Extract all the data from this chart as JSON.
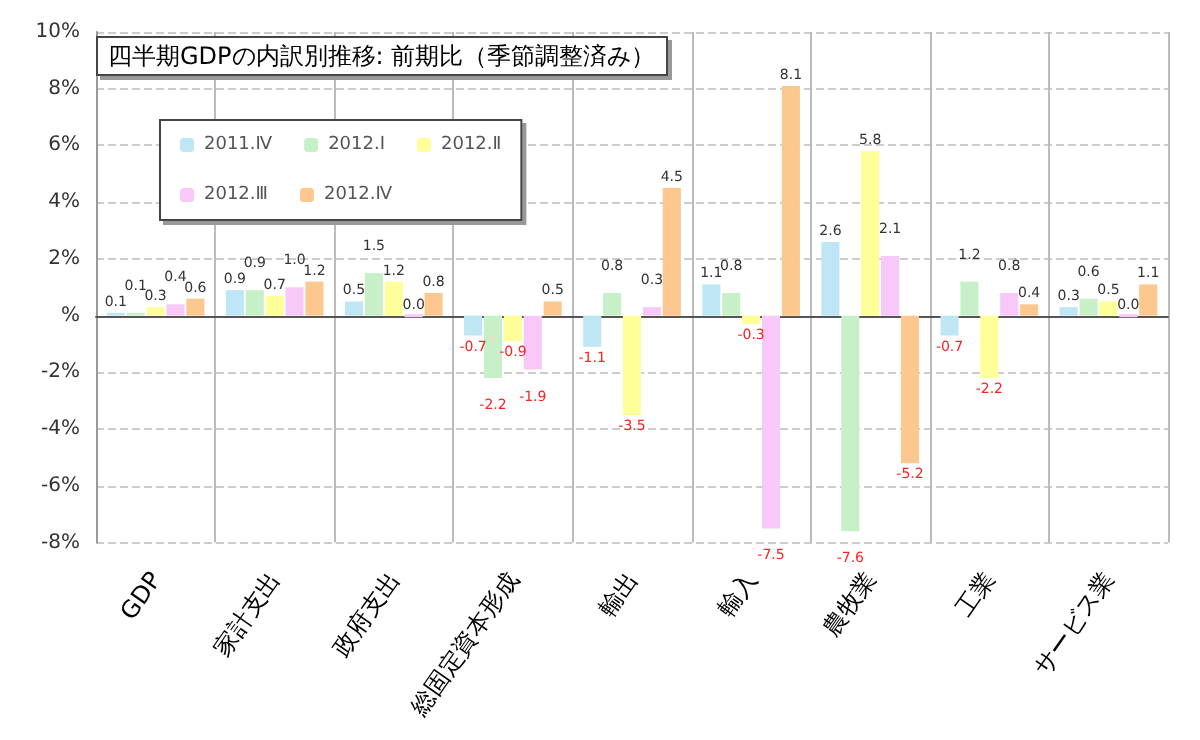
{
  "chart_data": {
    "type": "bar",
    "title": "四半期GDPの内訳別推移: 前期比（季節調整済み）",
    "categories": [
      "GDP",
      "家計支出",
      "政府支出",
      "総固定資本形成",
      "輸出",
      "輸入",
      "農牧業",
      "工業",
      "サービス業"
    ],
    "series": [
      {
        "name": "2011.Ⅳ",
        "color": "#bfe6f5",
        "values": [
          0.1,
          0.9,
          0.5,
          -0.7,
          -1.1,
          1.1,
          2.6,
          -0.7,
          0.3
        ],
        "value_labels": [
          "0.1",
          "0.9",
          "0.5",
          "-0.7",
          "-1.1",
          "1.1",
          "2.6",
          "-0.7",
          "0.3"
        ]
      },
      {
        "name": "2012.Ⅰ",
        "color": "#c8f0c8",
        "values": [
          0.1,
          0.9,
          1.5,
          -2.2,
          0.8,
          0.8,
          -7.6,
          1.2,
          0.6
        ],
        "value_labels": [
          "0.1",
          "0.9",
          "1.5",
          "-2.2",
          "0.8",
          "0.8",
          "-7.6",
          "1.2",
          "0.6"
        ]
      },
      {
        "name": "2012.Ⅱ",
        "color": "#ffff99",
        "values": [
          0.3,
          0.7,
          1.2,
          -0.9,
          -3.5,
          -0.3,
          5.8,
          -2.2,
          0.5
        ],
        "value_labels": [
          "0.3",
          "0.7",
          "1.2",
          "-0.9",
          "-3.5",
          "-0.3",
          "5.8",
          "-2.2",
          "0.5"
        ]
      },
      {
        "name": "2012.Ⅲ",
        "color": "#f8c8f8",
        "values": [
          0.4,
          1.0,
          0.0,
          -1.9,
          0.3,
          -7.5,
          2.1,
          0.8,
          0.0
        ],
        "value_labels": [
          "0.4",
          "1.0",
          "0.0",
          "-1.9",
          "0.3",
          "-7.5",
          "2.1",
          "0.8",
          "0.0"
        ]
      },
      {
        "name": "2012.Ⅳ",
        "color": "#fcc890",
        "values": [
          0.6,
          1.2,
          0.8,
          0.5,
          4.5,
          8.1,
          -5.2,
          0.4,
          1.1
        ],
        "value_labels": [
          "0.6",
          "1.2",
          "0.8",
          "0.5",
          "4.5",
          "8.1",
          "-5.2",
          "0.4",
          "1.1"
        ]
      }
    ],
    "ylim": [
      -8,
      10
    ],
    "yticks": [
      {
        "value": -8,
        "label": "-8%"
      },
      {
        "value": -6,
        "label": "-6%"
      },
      {
        "value": -4,
        "label": "-4%"
      },
      {
        "value": -2,
        "label": "-2%"
      },
      {
        "value": 0,
        "label": "%"
      },
      {
        "value": 2,
        "label": "2%"
      },
      {
        "value": 4,
        "label": "4%"
      },
      {
        "value": 6,
        "label": "6%"
      },
      {
        "value": 8,
        "label": "8%"
      },
      {
        "value": 10,
        "label": "10%"
      }
    ],
    "grid": true,
    "legend": "top left"
  }
}
